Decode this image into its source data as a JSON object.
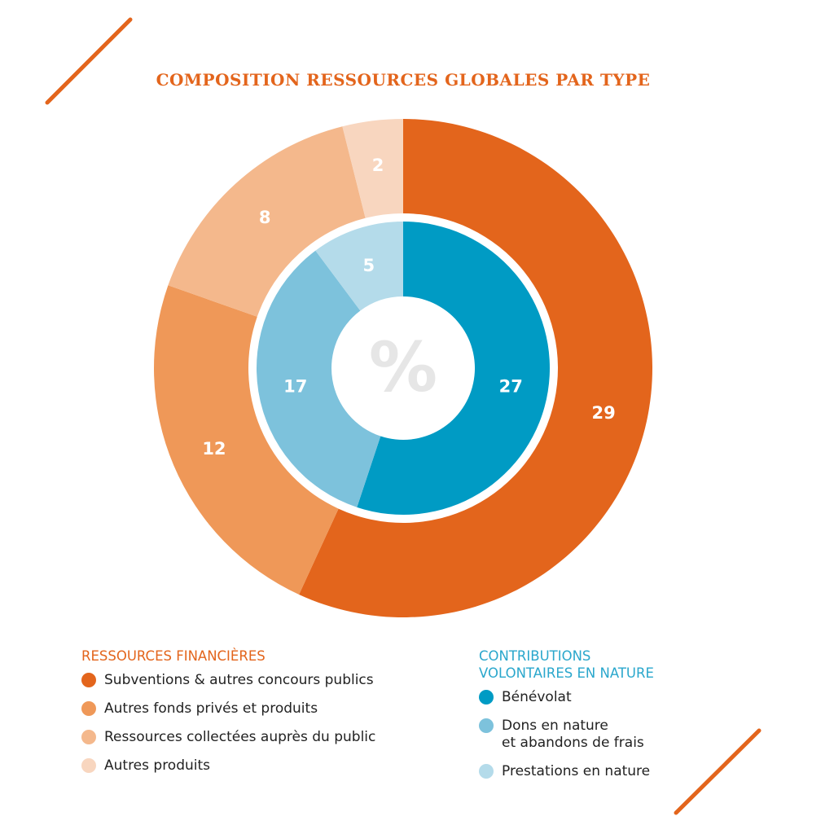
{
  "title": "COMPOSITION RESSOURCES GLOBALES PAR TYPE",
  "center_symbol": "%",
  "colors": {
    "accent_orange": "#e3651c",
    "accent_blue": "#2aa7cc",
    "background": "#ffffff",
    "center_symbol": "#e6e6e6"
  },
  "chart_data": {
    "type": "donut",
    "unit": "%",
    "rings": [
      {
        "name": "RESSOURCES FINANCIÈRES",
        "position": "outer",
        "slices": [
          {
            "label": "Subventions & autres concours publics",
            "value": 29,
            "color": "#e3651c"
          },
          {
            "label": "Autres fonds privés et produits",
            "value": 12,
            "color": "#ef9858"
          },
          {
            "label": "Ressources collectées auprès du public",
            "value": 8,
            "color": "#f4b88c"
          },
          {
            "label": "Autres produits",
            "value": 2,
            "color": "#f8d6bf"
          }
        ]
      },
      {
        "name": "CONTRIBUTIONS VOLONTAIRES EN NATURE",
        "position": "inner",
        "slices": [
          {
            "label": "Bénévolat",
            "value": 27,
            "color": "#009bc4"
          },
          {
            "label": "Dons en nature et abandons de frais",
            "value": 17,
            "color": "#7dc2dc"
          },
          {
            "label": "Prestations en nature",
            "value": 5,
            "color": "#b4dbea"
          }
        ]
      }
    ]
  },
  "legend": {
    "financial": {
      "heading": "RESSOURCES FINANCIÈRES",
      "color": "#e3651c",
      "items": [
        {
          "label": "Subventions & autres concours publics",
          "color": "#e3651c"
        },
        {
          "label": "Autres fonds privés et produits",
          "color": "#ef9858"
        },
        {
          "label": "Ressources collectées auprès du public",
          "color": "#f4b88c"
        },
        {
          "label": "Autres produits",
          "color": "#f8d6bf"
        }
      ]
    },
    "contributions": {
      "heading": "CONTRIBUTIONS\nVOLONTAIRES EN NATURE",
      "color": "#2aa7cc",
      "items": [
        {
          "label": "Bénévolat",
          "color": "#009bc4"
        },
        {
          "label": "Dons en nature\net abandons de frais",
          "color": "#7dc2dc"
        },
        {
          "label": "Prestations en nature",
          "color": "#b4dbea"
        }
      ]
    }
  }
}
